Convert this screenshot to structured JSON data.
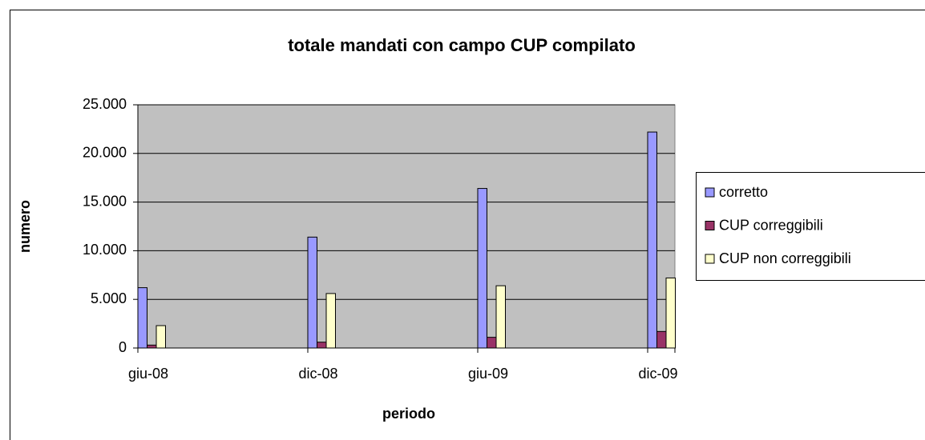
{
  "chart_data": {
    "type": "bar",
    "title": "totale mandati con campo CUP compilato",
    "x_label": "periodo",
    "y_label": "numero",
    "categories": [
      "giu-08",
      "dic-08",
      "giu-09",
      "dic-09"
    ],
    "series": [
      {
        "name": "corretto",
        "color": "#9999ff",
        "values": [
          6200,
          11400,
          16400,
          22200
        ]
      },
      {
        "name": "CUP correggibili",
        "color": "#993366",
        "values": [
          300,
          600,
          1100,
          1700
        ]
      },
      {
        "name": "CUP non correggibili",
        "color": "#ffffcc",
        "values": [
          2300,
          5600,
          6400,
          7200
        ]
      }
    ],
    "ylim": [
      0,
      25000
    ],
    "yticks": [
      0,
      {
        "value": 5000,
        "label": "5.000"
      },
      {
        "value": 10000,
        "label": "10.000"
      },
      {
        "value": 15000,
        "label": "15.000"
      },
      {
        "value": 20000,
        "label": "20.000"
      },
      {
        "value": 25000,
        "label": "25.000"
      }
    ],
    "grid": true,
    "legend": "right"
  }
}
